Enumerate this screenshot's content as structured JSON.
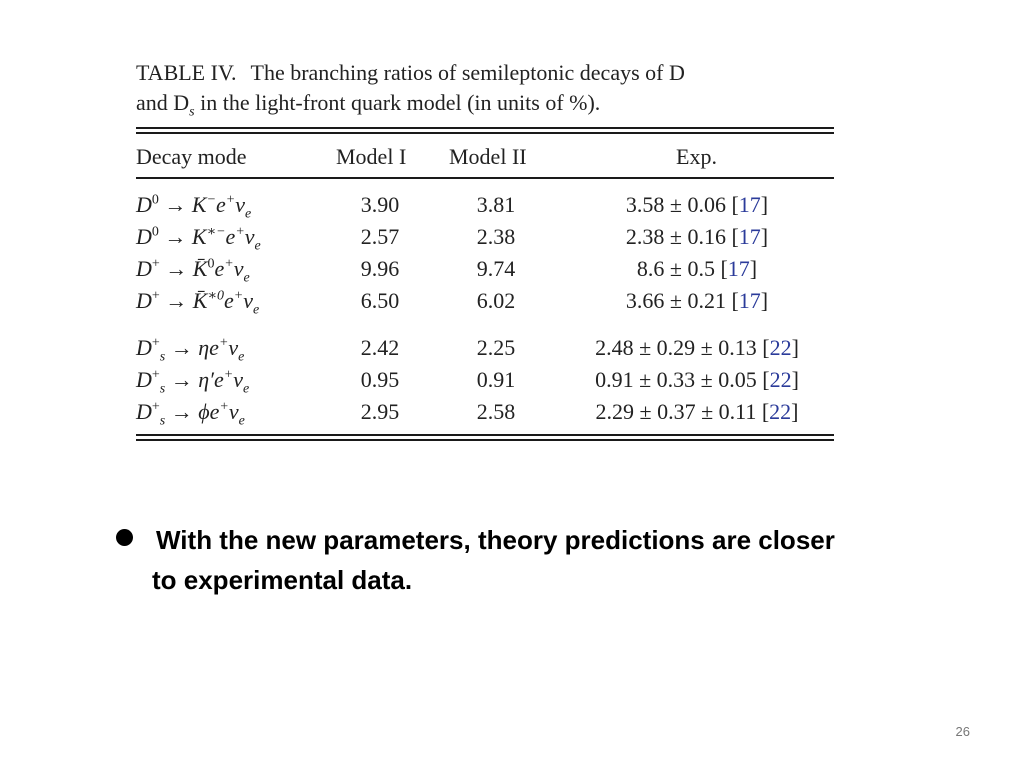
{
  "table": {
    "caption_label": "TABLE IV.",
    "caption_line1": "The branching ratios of semileptonic decays of D",
    "caption_line2": "and D",
    "caption_line2_sub": "s",
    "caption_line2_rest": " in the light-front quark model (in units of %).",
    "headers": {
      "mode": "Decay mode",
      "model1": "Model I",
      "model2": "Model II",
      "exp": "Exp."
    },
    "rows": [
      {
        "model1": "3.90",
        "model2": "3.81",
        "exp": "3.58 ± 0.06 [",
        "ref": "17",
        "close": "]"
      },
      {
        "model1": "2.57",
        "model2": "2.38",
        "exp": "2.38 ± 0.16 [",
        "ref": "17",
        "close": "]"
      },
      {
        "model1": "9.96",
        "model2": "9.74",
        "exp": "8.6 ± 0.5 [",
        "ref": "17",
        "close": "]"
      },
      {
        "model1": "6.50",
        "model2": "6.02",
        "exp": "3.66 ± 0.21 [",
        "ref": "17",
        "close": "]"
      },
      {
        "model1": "2.42",
        "model2": "2.25",
        "exp": "2.48 ± 0.29 ± 0.13 [",
        "ref": "22",
        "close": "]"
      },
      {
        "model1": "0.95",
        "model2": "0.91",
        "exp": "0.91 ± 0.33 ± 0.05 [",
        "ref": "22",
        "close": "]"
      },
      {
        "model1": "2.95",
        "model2": "2.58",
        "exp": "2.29 ± 0.37 ± 0.11 [",
        "ref": "22",
        "close": "]"
      }
    ]
  },
  "bullet": {
    "line1": "With the new parameters, theory predictions are closer",
    "line2": "to experimental data."
  },
  "page_number": "26"
}
